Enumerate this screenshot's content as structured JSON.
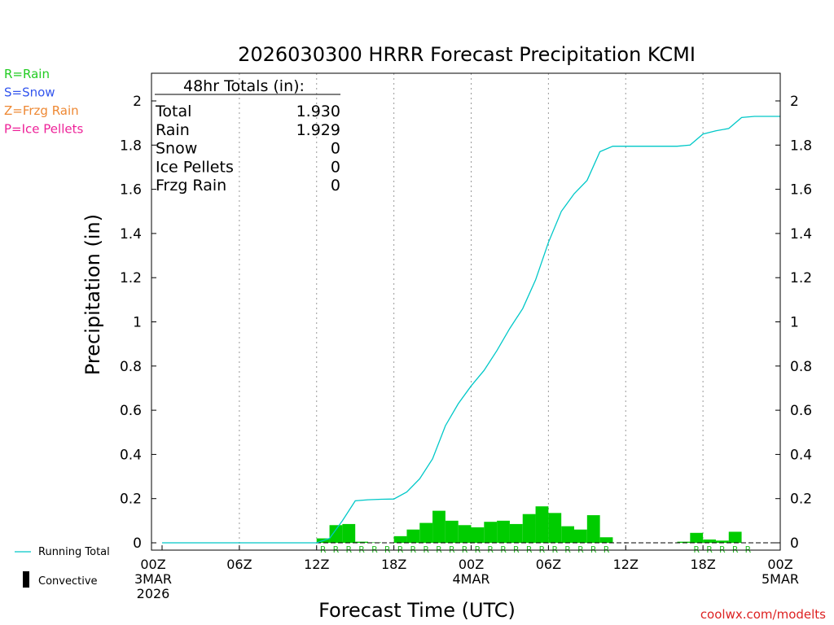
{
  "chart_data": {
    "type": "bar",
    "title": "2026030300 HRRR Forecast Precipitation KCMI",
    "xlabel": "Forecast Time (UTC)",
    "ylabel": "Precipitation (in)",
    "ylim": [
      0,
      2.12
    ],
    "y_ticks": [
      "0",
      "0.2",
      "0.4",
      "0.6",
      "0.8",
      "1",
      "1.2",
      "1.4",
      "1.6",
      "1.8",
      "2"
    ],
    "xlim_hours": [
      0,
      48
    ],
    "x_ticks": [
      {
        "hour": 0,
        "lines": [
          "00Z",
          "3MAR",
          "2026"
        ]
      },
      {
        "hour": 6,
        "lines": [
          "06Z"
        ]
      },
      {
        "hour": 12,
        "lines": [
          "12Z"
        ]
      },
      {
        "hour": 18,
        "lines": [
          "18Z"
        ]
      },
      {
        "hour": 24,
        "lines": [
          "00Z",
          "4MAR"
        ]
      },
      {
        "hour": 30,
        "lines": [
          "06Z"
        ]
      },
      {
        "hour": 36,
        "lines": [
          "12Z"
        ]
      },
      {
        "hour": 42,
        "lines": [
          "18Z"
        ]
      },
      {
        "hour": 48,
        "lines": [
          "00Z",
          "5MAR"
        ]
      }
    ],
    "grid": "vertical dotted at 6-hour ticks",
    "legend_placement": "left",
    "type_legend": [
      {
        "label": "R=Rain",
        "color": "#22cc22"
      },
      {
        "label": "S=Snow",
        "color": "#3355ee"
      },
      {
        "label": "Z=Frzg Rain",
        "color": "#ee8833"
      },
      {
        "label": "P=Ice Pellets",
        "color": "#ee2299"
      }
    ],
    "series_legend": {
      "running_total": "Running Total",
      "convective": "Convective"
    },
    "totals_box": {
      "header": "48hr Totals (in):",
      "rows": [
        {
          "label": "Total",
          "value": "1.930"
        },
        {
          "label": "Rain",
          "value": "1.929"
        },
        {
          "label": "Snow",
          "value": "0"
        },
        {
          "label": "Ice Pellets",
          "value": "0"
        },
        {
          "label": "Frzg Rain",
          "value": "0"
        }
      ]
    },
    "hourly_bars": {
      "name": "Hourly Precipitation",
      "color": "#00cc00",
      "hours": [
        13,
        14,
        15,
        16,
        17,
        18,
        19,
        20,
        21,
        22,
        23,
        24,
        25,
        26,
        27,
        28,
        29,
        30,
        31,
        32,
        33,
        34,
        35,
        37,
        38,
        39,
        40,
        41,
        42,
        43,
        44,
        45,
        46,
        47
      ],
      "values": [
        0.02,
        0.08,
        0.085,
        0.005,
        0.002,
        0.0,
        0.03,
        0.06,
        0.09,
        0.145,
        0.1,
        0.08,
        0.07,
        0.095,
        0.1,
        0.085,
        0.13,
        0.165,
        0.135,
        0.075,
        0.06,
        0.125,
        0.025,
        0.0,
        0.0,
        0.0,
        0.0,
        0.005,
        0.045,
        0.015,
        0.01,
        0.05,
        0.0,
        0.0
      ]
    },
    "precip_type_marks": {
      "letter": "R",
      "hours": [
        13,
        14,
        15,
        16,
        17,
        18,
        19,
        20,
        21,
        22,
        23,
        24,
        25,
        26,
        27,
        28,
        29,
        30,
        31,
        32,
        33,
        34,
        35,
        42,
        43,
        44,
        45,
        46
      ]
    },
    "running_total": {
      "name": "Running Total",
      "color": "#00c8c8",
      "x": [
        0,
        12,
        13,
        14,
        15,
        16,
        17,
        18,
        19,
        20,
        21,
        22,
        23,
        24,
        25,
        26,
        27,
        28,
        29,
        30,
        31,
        32,
        33,
        34,
        35,
        36,
        37,
        38,
        39,
        40,
        41,
        42,
        43,
        44,
        45,
        46,
        47,
        48
      ],
      "y": [
        0,
        0,
        0.02,
        0.1,
        0.19,
        0.195,
        0.197,
        0.198,
        0.23,
        0.29,
        0.38,
        0.53,
        0.63,
        0.71,
        0.78,
        0.87,
        0.97,
        1.06,
        1.19,
        1.36,
        1.5,
        1.58,
        1.64,
        1.77,
        1.795,
        1.795,
        1.795,
        1.795,
        1.795,
        1.795,
        1.8,
        1.85,
        1.865,
        1.875,
        1.925,
        1.93,
        1.93,
        1.93
      ]
    },
    "credit": "coolwx.com/modelts"
  }
}
